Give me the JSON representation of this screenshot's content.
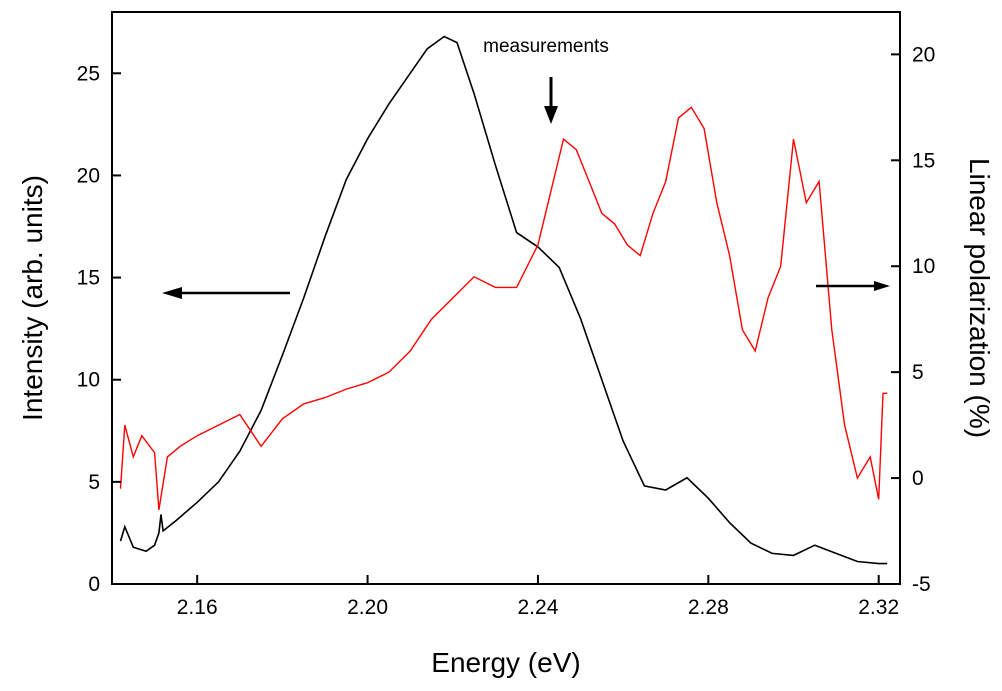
{
  "chart_data": {
    "type": "line",
    "title": "",
    "xlabel": "Energy (eV)",
    "ylabel_left": "Intensity (arb. units)",
    "ylabel_right": "Linear polarization (%)",
    "xlim": [
      2.14,
      2.325
    ],
    "ylim_left": [
      0,
      28
    ],
    "ylim_right": [
      -5,
      22
    ],
    "x_ticks": [
      "2.16",
      "2.20",
      "2.24",
      "2.28",
      "2.32"
    ],
    "y_left_ticks": [
      "0",
      "5",
      "10",
      "15",
      "20",
      "25"
    ],
    "y_right_ticks": [
      "-5",
      "0",
      "5",
      "10",
      "15",
      "20"
    ],
    "grid": false,
    "annotations": {
      "measurements": {
        "text": "measurements",
        "x": 2.247
      },
      "left_arrow_points_to": "left axis",
      "right_arrow_points_to": "right axis"
    },
    "series": [
      {
        "axis": "left",
        "color": "#000000",
        "x": [
          2.142,
          2.143,
          2.145,
          2.148,
          2.15,
          2.151,
          2.1515,
          2.152,
          2.155,
          2.16,
          2.165,
          2.17,
          2.175,
          2.18,
          2.185,
          2.19,
          2.195,
          2.2,
          2.205,
          2.21,
          2.214,
          2.218,
          2.221,
          2.225,
          2.23,
          2.235,
          2.24,
          2.245,
          2.25,
          2.255,
          2.26,
          2.265,
          2.27,
          2.275,
          2.28,
          2.285,
          2.29,
          2.295,
          2.3,
          2.305,
          2.31,
          2.315,
          2.32,
          2.322
        ],
        "values": [
          2.1,
          2.8,
          1.8,
          1.6,
          1.9,
          2.5,
          3.4,
          2.6,
          3.1,
          4.0,
          5.0,
          6.5,
          8.5,
          11.2,
          14.0,
          17.0,
          19.8,
          21.8,
          23.5,
          25.0,
          26.2,
          26.8,
          26.5,
          24.0,
          20.5,
          17.2,
          16.5,
          15.5,
          13.0,
          10.0,
          7.0,
          4.8,
          4.6,
          5.2,
          4.2,
          3.0,
          2.0,
          1.5,
          1.4,
          1.9,
          1.5,
          1.1,
          1.0,
          1.0
        ]
      },
      {
        "axis": "right",
        "color": "#ff0000",
        "x": [
          2.142,
          2.143,
          2.145,
          2.147,
          2.15,
          2.151,
          2.153,
          2.156,
          2.16,
          2.165,
          2.17,
          2.175,
          2.18,
          2.185,
          2.19,
          2.195,
          2.2,
          2.205,
          2.21,
          2.215,
          2.22,
          2.225,
          2.23,
          2.235,
          2.24,
          2.243,
          2.246,
          2.249,
          2.252,
          2.255,
          2.258,
          2.261,
          2.264,
          2.267,
          2.27,
          2.273,
          2.276,
          2.279,
          2.282,
          2.285,
          2.288,
          2.291,
          2.294,
          2.297,
          2.3,
          2.303,
          2.306,
          2.309,
          2.312,
          2.315,
          2.318,
          2.32,
          2.321,
          2.322
        ],
        "values": [
          -0.5,
          2.5,
          1.0,
          2.0,
          1.2,
          -1.5,
          1.0,
          1.5,
          2.0,
          2.5,
          3.0,
          1.5,
          2.8,
          3.5,
          3.8,
          4.2,
          4.5,
          5.0,
          6.0,
          7.5,
          8.5,
          9.5,
          9.0,
          9.0,
          11.0,
          13.5,
          16.0,
          15.5,
          14.0,
          12.5,
          12.0,
          11.0,
          10.5,
          12.5,
          14.0,
          17.0,
          17.5,
          16.5,
          13.0,
          10.5,
          7.0,
          6.0,
          8.5,
          10.0,
          16.0,
          13.0,
          14.0,
          7.0,
          2.5,
          0.0,
          1.0,
          -1.0,
          4.0,
          4.0
        ]
      }
    ]
  }
}
